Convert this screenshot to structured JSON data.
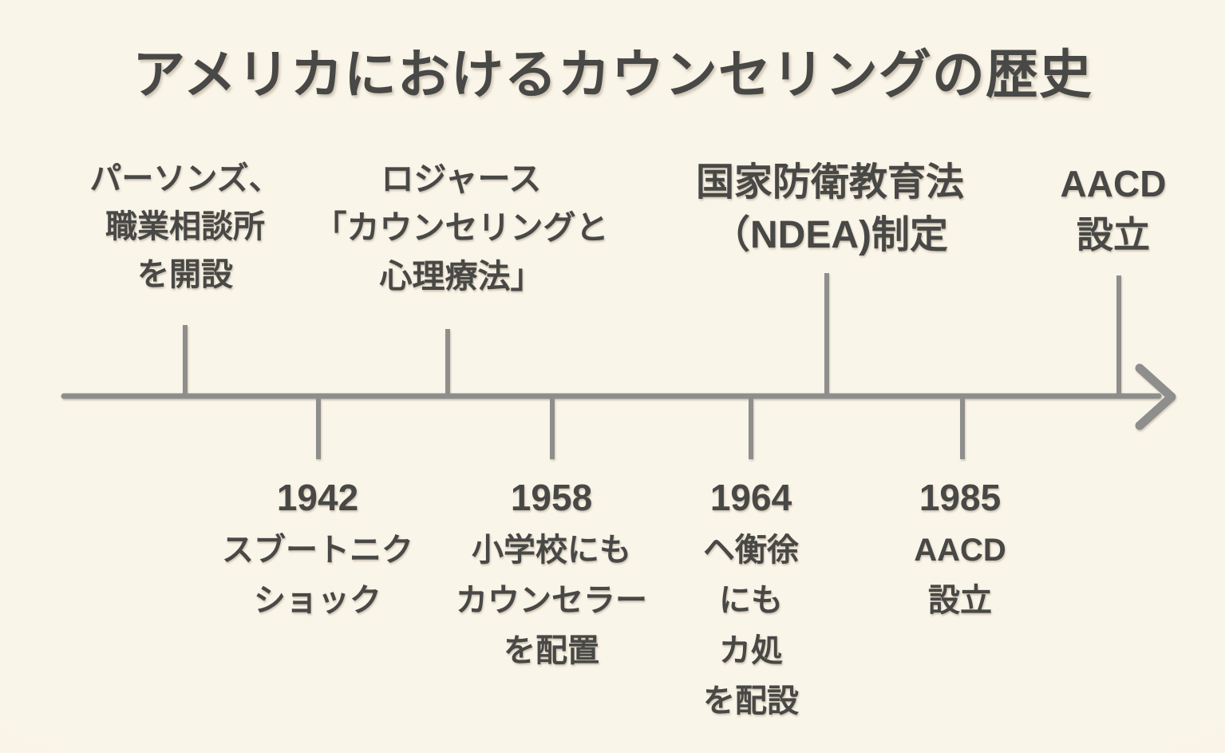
{
  "title": "アメリカにおけるカウンセリングの歴史",
  "timeline": {
    "direction": "left-to-right-arrow",
    "top_events": [
      {
        "id": "parsons-vocational-bureau",
        "lines": [
          "パーソンズ、",
          "職業相談所",
          "を開設"
        ]
      },
      {
        "id": "rogers-counseling-book",
        "lines": [
          "ロジャース",
          "「カウンセリングと",
          "心理療法」"
        ]
      },
      {
        "id": "ndea-enacted",
        "lines": [
          "国家防衛教育法",
          "（NDEA)制定"
        ]
      },
      {
        "id": "aacd-established-top",
        "lines": [
          "AACD",
          "設立"
        ]
      }
    ],
    "bottom_events": [
      {
        "id": "sputnik-shock",
        "year": "1942",
        "lines": [
          "スブートニク",
          "ショック"
        ]
      },
      {
        "id": "elementary-school-counselors",
        "year": "1958",
        "lines": [
          "小学校にも",
          "カウンセラー",
          "を配置"
        ]
      },
      {
        "id": "garbled-schools-event",
        "year": "1964",
        "lines": [
          "ヘ衡徐",
          "にも",
          "カ処",
          "を配設"
        ]
      },
      {
        "id": "aacd-established-bottom",
        "year": "1985",
        "lines": [
          "AACD",
          "設立"
        ]
      }
    ]
  },
  "colors": {
    "background": "#f8f3e7",
    "line": "#8e8e8c",
    "text": "#484846"
  }
}
